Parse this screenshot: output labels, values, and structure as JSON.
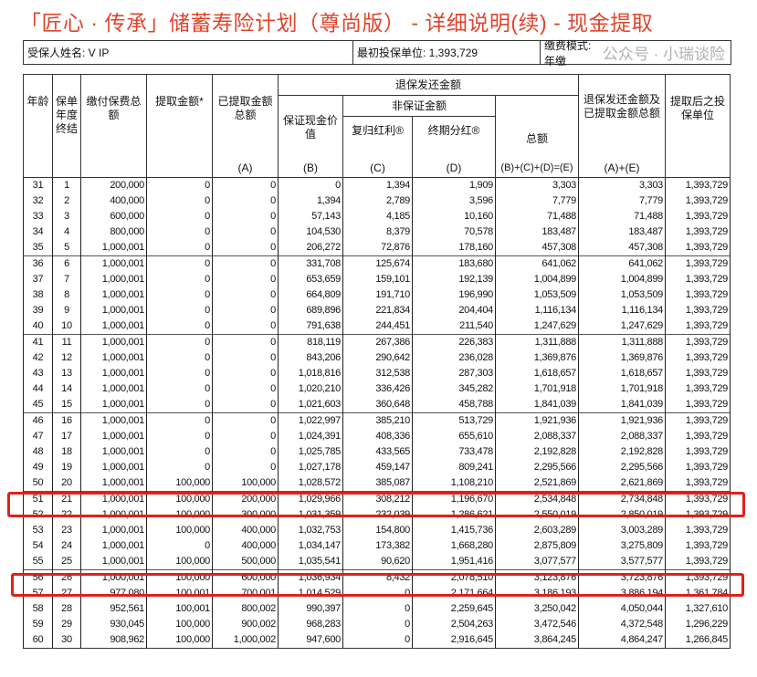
{
  "title": "「匠心 · 传承」储蓄寿险计划（尊尚版） - 详细说明(续) - 现金提取",
  "info": {
    "insured": "受保人姓名: V IP",
    "initial_units": "最初投保单位: 1,393,729",
    "payment_mode": "缴费模式: 年缴"
  },
  "headers": {
    "age": "年龄",
    "year": "保单年度终结",
    "premium": "缴付保费总额",
    "withdraw": "提取金额*",
    "withdrawn_total": "已提取金额总额",
    "withdrawn_total_code": "(A)",
    "surrender": "退保发还金额",
    "guaranteed": "保证现金价值",
    "guaranteed_code": "(B)",
    "non_guaranteed": "非保证金额",
    "reversionary": "复归红利®",
    "reversionary_code": "(C)",
    "terminal": "终期分红®",
    "terminal_code": "(D)",
    "total": "总额",
    "total_code": "(B)+(C)+(D)=(E)",
    "sum": "退保发还金额及已提取金额总额",
    "sum_code": "(A)+(E)",
    "units": "提取后之投保单位"
  },
  "highlight_color": "#e0201c",
  "rows": [
    [
      "31",
      "1",
      "200,000",
      "0",
      "0",
      "0",
      "1,394",
      "1,909",
      "3,303",
      "3,303",
      "1,393,729"
    ],
    [
      "32",
      "2",
      "400,000",
      "0",
      "0",
      "1,394",
      "2,789",
      "3,596",
      "7,779",
      "7,779",
      "1,393,729"
    ],
    [
      "33",
      "3",
      "600,000",
      "0",
      "0",
      "57,143",
      "4,185",
      "10,160",
      "71,488",
      "71,488",
      "1,393,729"
    ],
    [
      "34",
      "4",
      "800,000",
      "0",
      "0",
      "104,530",
      "8,379",
      "70,578",
      "183,487",
      "183,487",
      "1,393,729"
    ],
    [
      "35",
      "5",
      "1,000,001",
      "0",
      "0",
      "206,272",
      "72,876",
      "178,160",
      "457,308",
      "457,308",
      "1,393,729"
    ],
    [
      "36",
      "6",
      "1,000,001",
      "0",
      "0",
      "331,708",
      "125,674",
      "183,680",
      "641,062",
      "641,062",
      "1,393,729"
    ],
    [
      "37",
      "7",
      "1,000,001",
      "0",
      "0",
      "653,659",
      "159,101",
      "192,139",
      "1,004,899",
      "1,004,899",
      "1,393,729"
    ],
    [
      "38",
      "8",
      "1,000,001",
      "0",
      "0",
      "664,809",
      "191,710",
      "196,990",
      "1,053,509",
      "1,053,509",
      "1,393,729"
    ],
    [
      "39",
      "9",
      "1,000,001",
      "0",
      "0",
      "689,896",
      "221,834",
      "204,404",
      "1,116,134",
      "1,116,134",
      "1,393,729"
    ],
    [
      "40",
      "10",
      "1,000,001",
      "0",
      "0",
      "791,638",
      "244,451",
      "211,540",
      "1,247,629",
      "1,247,629",
      "1,393,729"
    ],
    [
      "41",
      "11",
      "1,000,001",
      "0",
      "0",
      "818,119",
      "267,386",
      "226,383",
      "1,311,888",
      "1,311,888",
      "1,393,729"
    ],
    [
      "42",
      "12",
      "1,000,001",
      "0",
      "0",
      "843,206",
      "290,642",
      "236,028",
      "1,369,876",
      "1,369,876",
      "1,393,729"
    ],
    [
      "43",
      "13",
      "1,000,001",
      "0",
      "0",
      "1,018,816",
      "312,538",
      "287,303",
      "1,618,657",
      "1,618,657",
      "1,393,729"
    ],
    [
      "44",
      "14",
      "1,000,001",
      "0",
      "0",
      "1,020,210",
      "336,426",
      "345,282",
      "1,701,918",
      "1,701,918",
      "1,393,729"
    ],
    [
      "45",
      "15",
      "1,000,001",
      "0",
      "0",
      "1,021,603",
      "360,648",
      "458,788",
      "1,841,039",
      "1,841,039",
      "1,393,729"
    ],
    [
      "46",
      "16",
      "1,000,001",
      "0",
      "0",
      "1,022,997",
      "385,210",
      "513,729",
      "1,921,936",
      "1,921,936",
      "1,393,729"
    ],
    [
      "47",
      "17",
      "1,000,001",
      "0",
      "0",
      "1,024,391",
      "408,336",
      "655,610",
      "2,088,337",
      "2,088,337",
      "1,393,729"
    ],
    [
      "48",
      "18",
      "1,000,001",
      "0",
      "0",
      "1,025,785",
      "433,565",
      "733,478",
      "2,192,828",
      "2,192,828",
      "1,393,729"
    ],
    [
      "49",
      "19",
      "1,000,001",
      "0",
      "0",
      "1,027,178",
      "459,147",
      "809,241",
      "2,295,566",
      "2,295,566",
      "1,393,729"
    ],
    [
      "50",
      "20",
      "1,000,001",
      "100,000",
      "100,000",
      "1,028,572",
      "385,087",
      "1,108,210",
      "2,521,869",
      "2,621,869",
      "1,393,729"
    ],
    [
      "51",
      "21",
      "1,000,001",
      "100,000",
      "200,000",
      "1,029,966",
      "308,212",
      "1,196,670",
      "2,534,848",
      "2,734,848",
      "1,393,729"
    ],
    [
      "52",
      "22",
      "1,000,001",
      "100,000",
      "300,000",
      "1,031,359",
      "232,039",
      "1,286,621",
      "2,550,019",
      "2,850,019",
      "1,393,729"
    ],
    [
      "53",
      "23",
      "1,000,001",
      "100,000",
      "400,000",
      "1,032,753",
      "154,800",
      "1,415,736",
      "2,603,289",
      "3,003,289",
      "1,393,729"
    ],
    [
      "54",
      "24",
      "1,000,001",
      "0",
      "400,000",
      "1,034,147",
      "173,382",
      "1,668,280",
      "2,875,809",
      "3,275,809",
      "1,393,729"
    ],
    [
      "55",
      "25",
      "1,000,001",
      "100,000",
      "500,000",
      "1,035,541",
      "90,620",
      "1,951,416",
      "3,077,577",
      "3,577,577",
      "1,393,729"
    ],
    [
      "56",
      "26",
      "1,000,001",
      "100,000",
      "600,000",
      "1,036,934",
      "8,432",
      "2,078,510",
      "3,123,876",
      "3,723,876",
      "1,393,729"
    ],
    [
      "57",
      "27",
      "977,080",
      "100,001",
      "700,001",
      "1,014,529",
      "0",
      "2,171,664",
      "3,186,193",
      "3,886,194",
      "1,361,784"
    ],
    [
      "58",
      "28",
      "952,561",
      "100,001",
      "800,002",
      "990,397",
      "0",
      "2,259,645",
      "3,250,042",
      "4,050,044",
      "1,327,610"
    ],
    [
      "59",
      "29",
      "930,045",
      "100,000",
      "900,002",
      "968,283",
      "0",
      "2,504,263",
      "3,472,546",
      "4,372,548",
      "1,296,229"
    ],
    [
      "60",
      "30",
      "908,962",
      "100,000",
      "1,000,002",
      "947,600",
      "0",
      "2,916,645",
      "3,864,245",
      "4,864,247",
      "1,266,845"
    ]
  ],
  "watermark": "公众号 · 小瑞谈险"
}
